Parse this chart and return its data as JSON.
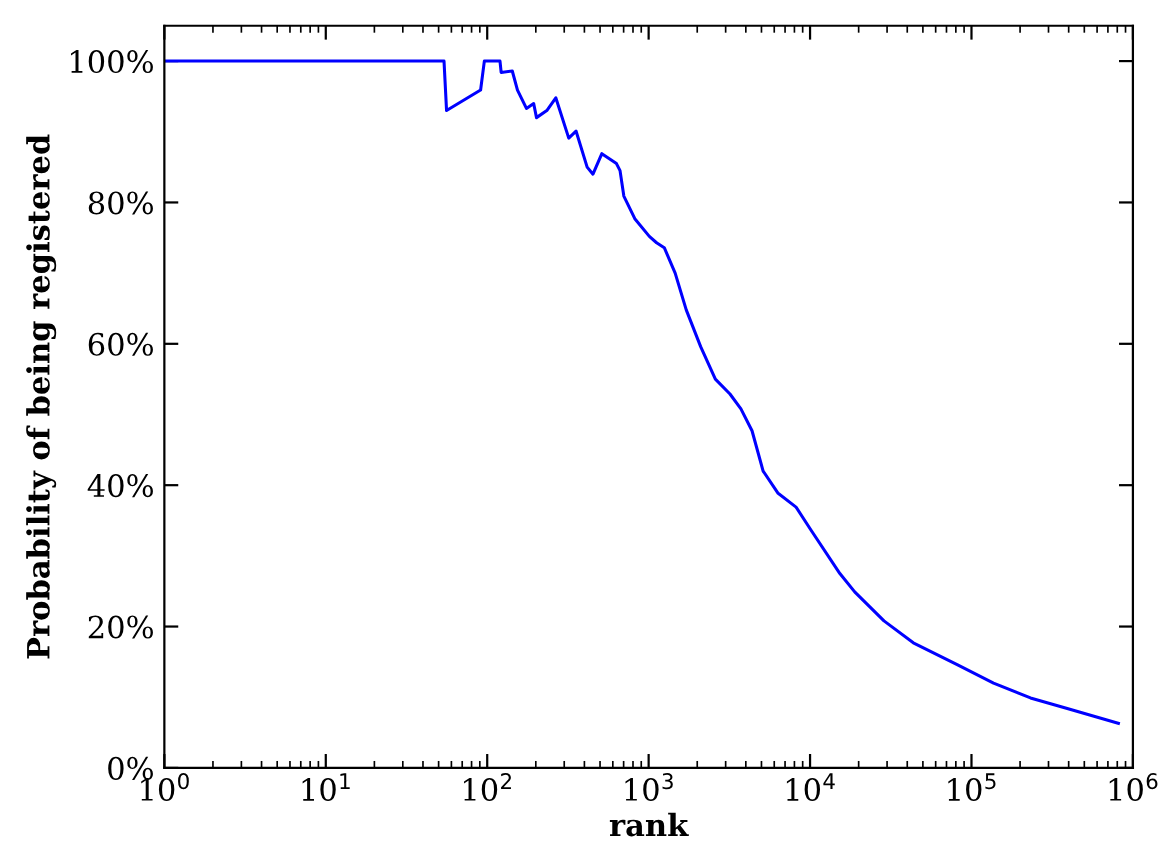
{
  "chart_data": {
    "type": "line",
    "xlabel": "rank",
    "ylabel": "Probability of being registered",
    "log": "x",
    "xlim": [
      1,
      1000000
    ],
    "ylim": [
      0,
      105
    ],
    "xticks": [
      {
        "value": 1,
        "label": "10$^{0}$"
      },
      {
        "value": 10,
        "label": "10$^{1}$"
      },
      {
        "value": 100,
        "label": "10$^{2}$"
      },
      {
        "value": 1000,
        "label": "10$^{3}$"
      },
      {
        "value": 10000,
        "label": "10$^{4}$"
      },
      {
        "value": 100000,
        "label": "10$^{5}$"
      },
      {
        "value": 1000000,
        "label": "10$^{6}$"
      }
    ],
    "yticks": [
      {
        "value": 0,
        "label": "0%"
      },
      {
        "value": 20,
        "label": "20%"
      },
      {
        "value": 40,
        "label": "40%"
      },
      {
        "value": 60,
        "label": "60%"
      },
      {
        "value": 80,
        "label": "80%"
      },
      {
        "value": 100,
        "label": "100%"
      }
    ],
    "grid": false,
    "marker": "none",
    "line_style": "solid",
    "series": [
      {
        "color": "#0000ff",
        "x": [
          1,
          54,
          56,
          91,
          96,
          120,
          122,
          143,
          154,
          175,
          194,
          202,
          234,
          266,
          320,
          355,
          416,
          452,
          513,
          632,
          665,
          702,
          821,
          1010,
          1120,
          1250,
          1460,
          1710,
          2100,
          2590,
          3190,
          3730,
          4370,
          5120,
          6310,
          8190,
          10100,
          15300,
          18900,
          28700,
          43600,
          81500,
          137000,
          232000,
          392000,
          813000
        ],
        "values": [
          100,
          100,
          93.0,
          95.9,
          100,
          100,
          98.4,
          98.6,
          95.9,
          93.3,
          94.0,
          92.0,
          93.0,
          94.8,
          89.1,
          90.1,
          85.0,
          84.0,
          86.9,
          85.5,
          84.5,
          80.9,
          77.7,
          75.2,
          74.3,
          73.6,
          70.0,
          64.8,
          59.6,
          55.0,
          52.9,
          50.8,
          47.7,
          42.0,
          38.9,
          36.9,
          33.7,
          27.5,
          24.9,
          20.8,
          17.7,
          14.6,
          12.0,
          9.9,
          8.4,
          6.3
        ]
      }
    ]
  }
}
